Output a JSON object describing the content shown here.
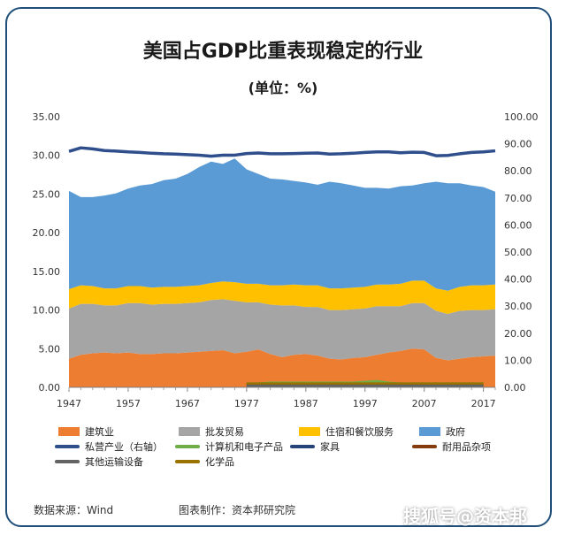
{
  "title": "美国占GDP比重表现稳定的行业",
  "subtitle": "(单位：%)",
  "footer": {
    "source": "数据来源：Wind",
    "maker": "图表制作：资本邦研究院",
    "watermark": "搜狐号@资本邦"
  },
  "chart_data": {
    "type": "area",
    "x": [
      1947,
      1949,
      1951,
      1953,
      1955,
      1957,
      1959,
      1961,
      1963,
      1965,
      1967,
      1969,
      1971,
      1973,
      1975,
      1977,
      1979,
      1981,
      1983,
      1985,
      1987,
      1989,
      1991,
      1993,
      1995,
      1997,
      1999,
      2001,
      2003,
      2005,
      2007,
      2009,
      2011,
      2013,
      2015,
      2017,
      2019
    ],
    "x_ticks": [
      "1947",
      "1957",
      "1967",
      "1977",
      "1987",
      "1997",
      "2007",
      "2017"
    ],
    "y_left_ticks": [
      "0.00",
      "5.00",
      "10.00",
      "15.00",
      "20.00",
      "25.00",
      "30.00",
      "35.00"
    ],
    "y_right_ticks": [
      "0.00",
      "10.00",
      "20.00",
      "30.00",
      "40.00",
      "50.00",
      "60.00",
      "70.00",
      "80.00",
      "90.00",
      "100.00"
    ],
    "ylim_left": [
      0,
      35
    ],
    "ylim_right": [
      0,
      100
    ],
    "stacked_series": [
      {
        "name": "建筑业",
        "color": "#ed7d31",
        "values": [
          3.7,
          4.2,
          4.4,
          4.5,
          4.4,
          4.5,
          4.3,
          4.3,
          4.4,
          4.4,
          4.5,
          4.6,
          4.7,
          4.8,
          4.4,
          4.6,
          4.9,
          4.3,
          3.9,
          4.2,
          4.3,
          4.1,
          3.7,
          3.6,
          3.8,
          3.9,
          4.2,
          4.5,
          4.7,
          5.0,
          4.9,
          3.8,
          3.5,
          3.7,
          3.9,
          4.0,
          4.1
        ]
      },
      {
        "name": "批发贸易",
        "color": "#a5a5a5",
        "values": [
          6.5,
          6.6,
          6.4,
          6.1,
          6.2,
          6.4,
          6.6,
          6.4,
          6.4,
          6.4,
          6.4,
          6.4,
          6.6,
          6.6,
          6.8,
          6.4,
          6.1,
          6.4,
          6.7,
          6.4,
          6.1,
          6.3,
          6.3,
          6.4,
          6.3,
          6.3,
          6.3,
          6.0,
          5.8,
          5.9,
          6.0,
          6.1,
          6.0,
          6.2,
          6.1,
          6.0,
          6.0
        ]
      },
      {
        "name": "住宿和餐饮服务",
        "color": "#ffc000",
        "values": [
          2.5,
          2.4,
          2.3,
          2.2,
          2.2,
          2.2,
          2.2,
          2.2,
          2.2,
          2.2,
          2.2,
          2.2,
          2.2,
          2.3,
          2.4,
          2.4,
          2.4,
          2.5,
          2.6,
          2.7,
          2.8,
          2.8,
          2.8,
          2.8,
          2.8,
          2.8,
          2.8,
          2.8,
          2.9,
          2.9,
          2.9,
          2.9,
          3.0,
          3.1,
          3.2,
          3.2,
          3.2
        ]
      },
      {
        "name": "政府",
        "color": "#5b9bd5",
        "values": [
          12.7,
          11.4,
          11.5,
          12.0,
          12.3,
          12.6,
          13.0,
          13.4,
          13.8,
          14.0,
          14.5,
          15.3,
          15.7,
          15.2,
          16.0,
          14.8,
          14.2,
          13.8,
          13.7,
          13.4,
          13.3,
          13.0,
          13.8,
          13.6,
          13.2,
          12.8,
          12.5,
          12.4,
          12.6,
          12.3,
          12.6,
          13.8,
          13.9,
          13.4,
          12.9,
          12.7,
          12.0
        ]
      }
    ],
    "line_series": [
      {
        "name": "私营产业（右轴）",
        "axis": "right",
        "color": "#2f4e8c",
        "values": [
          87.2,
          88.5,
          88.1,
          87.5,
          87.3,
          87.0,
          86.8,
          86.5,
          86.3,
          86.2,
          86.0,
          85.8,
          85.4,
          85.8,
          85.8,
          86.4,
          86.6,
          86.3,
          86.3,
          86.4,
          86.5,
          86.6,
          86.2,
          86.3,
          86.5,
          86.8,
          87.0,
          87.0,
          86.7,
          86.9,
          86.8,
          85.6,
          85.7,
          86.3,
          86.8,
          87.0,
          87.4
        ]
      },
      {
        "name": "计算机和电子产品",
        "axis": "left",
        "color": "#70ad47",
        "start_year": 1977,
        "values": [
          0.5,
          0.5,
          0.6,
          0.6,
          0.6,
          0.6,
          0.6,
          0.6,
          0.6,
          0.6,
          0.7,
          0.8,
          0.6,
          0.5,
          0.5,
          0.5,
          0.5,
          0.5,
          0.5,
          0.5,
          0.5
        ]
      },
      {
        "name": "家具",
        "axis": "left",
        "color": "#264478",
        "start_year": 1977,
        "values": [
          0.3,
          0.3,
          0.3,
          0.3,
          0.3,
          0.3,
          0.3,
          0.3,
          0.3,
          0.3,
          0.3,
          0.3,
          0.3,
          0.3,
          0.3,
          0.2,
          0.2,
          0.2,
          0.2,
          0.2,
          0.2
        ]
      },
      {
        "name": "耐用品杂项",
        "axis": "left",
        "color": "#843c0c",
        "start_year": 1977,
        "values": [
          0.4,
          0.4,
          0.4,
          0.4,
          0.4,
          0.4,
          0.4,
          0.4,
          0.4,
          0.4,
          0.4,
          0.4,
          0.4,
          0.4,
          0.4,
          0.4,
          0.4,
          0.4,
          0.4,
          0.4,
          0.4
        ]
      },
      {
        "name": "其他运输设备",
        "axis": "left",
        "color": "#636363",
        "start_year": 1977,
        "values": [
          0.2,
          0.2,
          0.2,
          0.2,
          0.2,
          0.2,
          0.2,
          0.2,
          0.2,
          0.2,
          0.2,
          0.2,
          0.2,
          0.2,
          0.2,
          0.2,
          0.2,
          0.2,
          0.2,
          0.2,
          0.2
        ]
      },
      {
        "name": "化学品",
        "axis": "left",
        "color": "#997300",
        "start_year": 1977,
        "values": [
          0.5,
          0.5,
          0.5,
          0.5,
          0.5,
          0.5,
          0.5,
          0.5,
          0.5,
          0.5,
          0.5,
          0.5,
          0.5,
          0.5,
          0.5,
          0.5,
          0.5,
          0.5,
          0.5,
          0.5,
          0.5
        ]
      }
    ]
  }
}
